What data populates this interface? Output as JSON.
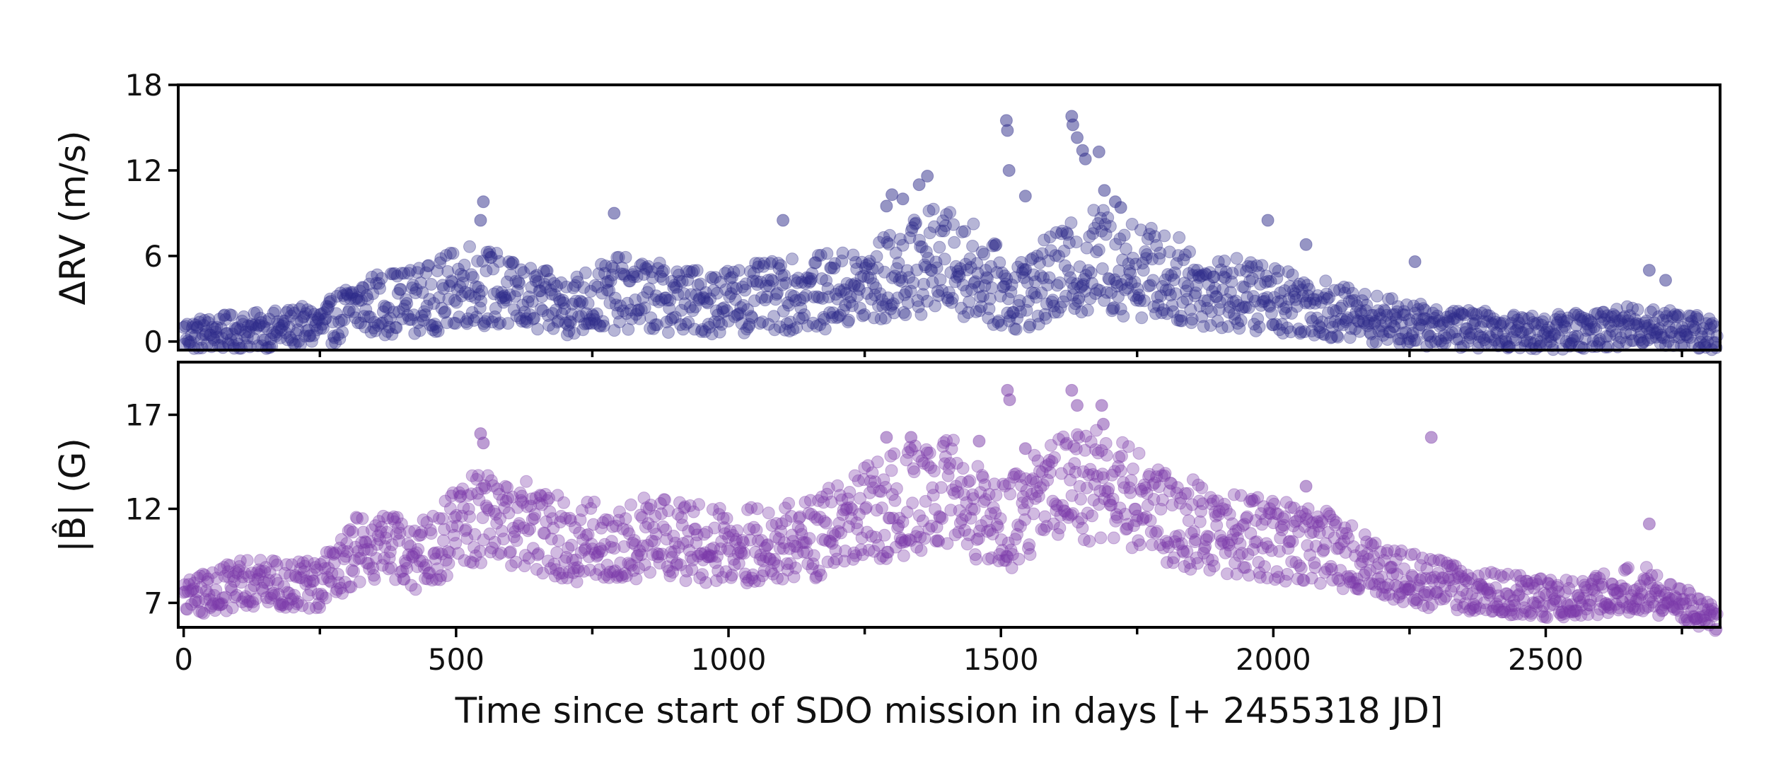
{
  "chart_data": [
    {
      "type": "scatter",
      "ylabel": "ΔRV (m/s)",
      "ylim": [
        -0.6,
        18
      ],
      "yticks": [
        0,
        6,
        12,
        18
      ],
      "xlim": [
        -10,
        2820
      ],
      "x_ticks_labeled": false,
      "marker_color": "#2e2b8a",
      "marker_alpha": 0.5,
      "trend": [
        [
          0,
          0.5
        ],
        [
          150,
          0.8
        ],
        [
          260,
          1.2
        ],
        [
          320,
          2.5
        ],
        [
          450,
          3.0
        ],
        [
          530,
          4.2
        ],
        [
          620,
          3.0
        ],
        [
          700,
          2.5
        ],
        [
          800,
          3.4
        ],
        [
          950,
          2.8
        ],
        [
          1100,
          3.2
        ],
        [
          1250,
          3.8
        ],
        [
          1380,
          5.8
        ],
        [
          1450,
          5.0
        ],
        [
          1520,
          3.2
        ],
        [
          1600,
          4.5
        ],
        [
          1680,
          5.8
        ],
        [
          1780,
          4.8
        ],
        [
          1900,
          3.5
        ],
        [
          2050,
          2.8
        ],
        [
          2150,
          1.8
        ],
        [
          2300,
          1.0
        ],
        [
          2500,
          0.6
        ],
        [
          2700,
          1.2
        ],
        [
          2820,
          0.4
        ]
      ],
      "series": [
        {
          "values": [
            [
              550,
              9.8
            ],
            [
              545,
              8.5
            ],
            [
              790,
              9.0
            ],
            [
              1100,
              8.5
            ],
            [
              1290,
              9.5
            ],
            [
              1320,
              10.0
            ],
            [
              1350,
              11.0
            ],
            [
              1365,
              11.6
            ],
            [
              1300,
              10.3
            ],
            [
              1510,
              15.5
            ],
            [
              1512,
              14.8
            ],
            [
              1515,
              12.0
            ],
            [
              1545,
              10.2
            ],
            [
              1630,
              15.8
            ],
            [
              1632,
              15.2
            ],
            [
              1640,
              14.3
            ],
            [
              1650,
              13.4
            ],
            [
              1655,
              12.8
            ],
            [
              1680,
              13.3
            ],
            [
              1690,
              10.6
            ],
            [
              1710,
              9.8
            ],
            [
              1720,
              9.4
            ],
            [
              1990,
              8.5
            ],
            [
              2060,
              6.8
            ],
            [
              2260,
              5.6
            ],
            [
              2690,
              5.0
            ],
            [
              2720,
              4.3
            ]
          ]
        }
      ]
    },
    {
      "type": "scatter",
      "ylabel": "|B̂| (G)",
      "ylim": [
        5.7,
        19.8
      ],
      "yticks": [
        7,
        12,
        17
      ],
      "xlim": [
        -10,
        2820
      ],
      "xticks": [
        0,
        500,
        1000,
        1500,
        2000,
        2500
      ],
      "xlabel": "Time since start of SDO mission in days [+ 2455318 JD]",
      "marker_color": "#7a3aa8",
      "marker_alpha": 0.5,
      "trend": [
        [
          0,
          7.3
        ],
        [
          100,
          8.0
        ],
        [
          250,
          8.0
        ],
        [
          330,
          10.0
        ],
        [
          430,
          9.5
        ],
        [
          520,
          11.5
        ],
        [
          620,
          11.2
        ],
        [
          720,
          10.2
        ],
        [
          850,
          10.5
        ],
        [
          1000,
          10.0
        ],
        [
          1150,
          10.4
        ],
        [
          1280,
          12.0
        ],
        [
          1400,
          13.0
        ],
        [
          1500,
          11.0
        ],
        [
          1600,
          12.8
        ],
        [
          1680,
          13.5
        ],
        [
          1800,
          11.5
        ],
        [
          1950,
          10.5
        ],
        [
          2100,
          10.0
        ],
        [
          2200,
          8.5
        ],
        [
          2350,
          7.8
        ],
        [
          2500,
          7.2
        ],
        [
          2680,
          7.8
        ],
        [
          2760,
          6.8
        ],
        [
          2820,
          6.0
        ]
      ],
      "series": [
        {
          "values": [
            [
              545,
              16.0
            ],
            [
              550,
              15.5
            ],
            [
              1512,
              18.3
            ],
            [
              1516,
              17.8
            ],
            [
              1630,
              18.3
            ],
            [
              1640,
              17.5
            ],
            [
              1685,
              17.5
            ],
            [
              1688,
              16.5
            ],
            [
              2060,
              13.2
            ],
            [
              2290,
              15.8
            ],
            [
              2690,
              11.2
            ],
            [
              1290,
              15.8
            ],
            [
              1335,
              15.8
            ],
            [
              1460,
              15.6
            ],
            [
              1545,
              15.2
            ]
          ]
        }
      ]
    }
  ]
}
